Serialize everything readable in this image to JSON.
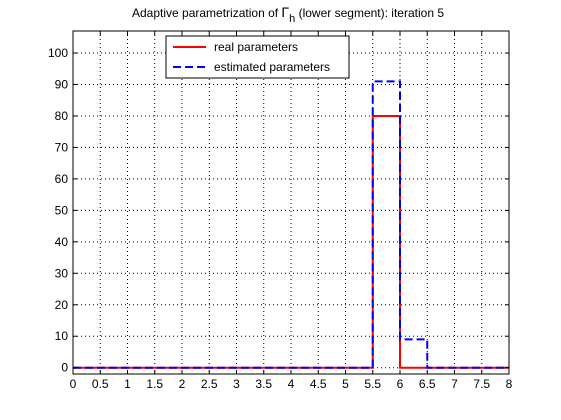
{
  "chart_data": {
    "type": "line",
    "title_prefix": "Adaptive parametrization of ",
    "title_symbol": "Γ",
    "title_subscript": "h",
    "title_suffix": " (lower segment): iteration 5",
    "xlabel": "",
    "ylabel": "",
    "xlim": [
      0,
      8
    ],
    "ylim": [
      -2,
      107
    ],
    "xticks": [
      "0",
      "0.5",
      "1",
      "1.5",
      "2",
      "2.5",
      "3",
      "3.5",
      "4",
      "4.5",
      "5",
      "5.5",
      "6",
      "6.5",
      "7",
      "7.5",
      "8"
    ],
    "xtick_values": [
      0,
      0.5,
      1,
      1.5,
      2,
      2.5,
      3,
      3.5,
      4,
      4.5,
      5,
      5.5,
      6,
      6.5,
      7,
      7.5,
      8
    ],
    "yticks": [
      "0",
      "10",
      "20",
      "30",
      "40",
      "50",
      "60",
      "70",
      "80",
      "90",
      "100"
    ],
    "ytick_values": [
      0,
      10,
      20,
      30,
      40,
      50,
      60,
      70,
      80,
      90,
      100
    ],
    "grid": true,
    "legend_position": "top-center",
    "series": [
      {
        "name": "real parameters",
        "color": "#ff0000",
        "style": "solid",
        "x": [
          0,
          5.5,
          5.5,
          6,
          6,
          8
        ],
        "y": [
          0,
          0,
          80,
          80,
          0,
          0
        ]
      },
      {
        "name": "estimated parameters",
        "color": "#0000ff",
        "style": "dashed",
        "x": [
          0,
          5.5,
          5.5,
          6,
          6,
          6.5,
          6.5,
          8
        ],
        "y": [
          0,
          0,
          91,
          91,
          9,
          9,
          0,
          0
        ]
      }
    ]
  }
}
